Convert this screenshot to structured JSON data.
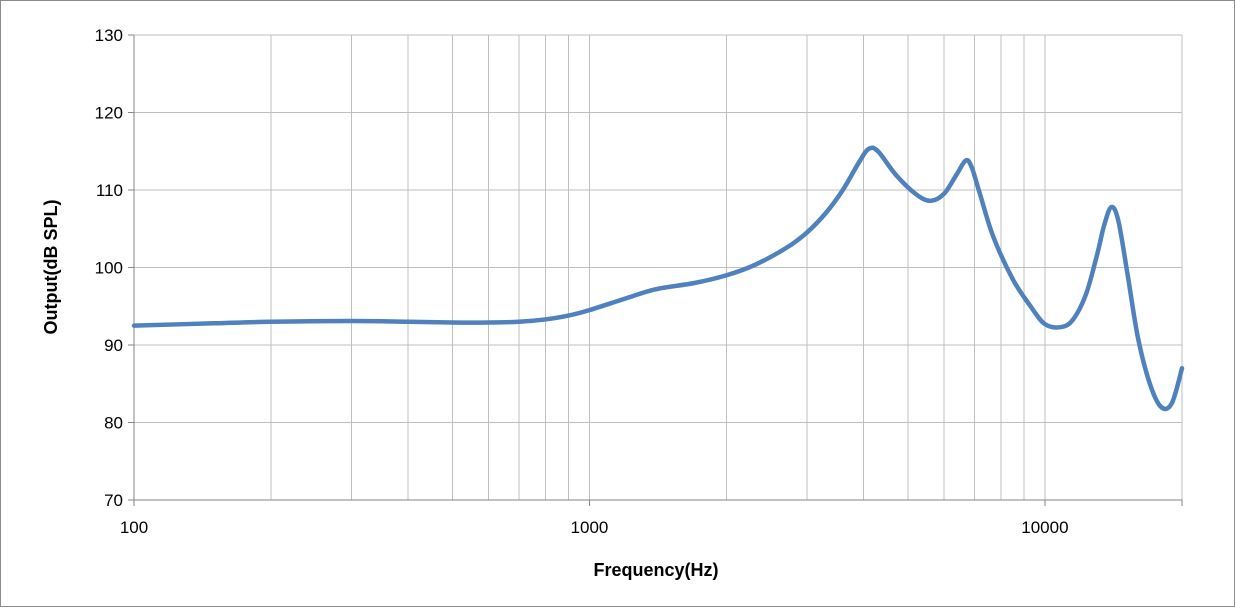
{
  "chart_data": {
    "type": "line",
    "title": "",
    "xlabel": "Frequency(Hz)",
    "ylabel": "Output(dB SPL)",
    "x_scale": "log",
    "xlim": [
      100,
      20000
    ],
    "ylim": [
      70,
      130
    ],
    "x_tick_labels": [
      "100",
      "1000",
      "10000"
    ],
    "y_ticks": [
      70,
      80,
      90,
      100,
      110,
      120,
      130
    ],
    "y_tick_labels": [
      "70",
      "80",
      "90",
      "100",
      "110",
      "120",
      "130"
    ],
    "grid": true,
    "legend": "none",
    "line_color": "#4f81bd",
    "series": [
      {
        "x": [
          100,
          150,
          200,
          300,
          400,
          500,
          600,
          700,
          800,
          900,
          1000,
          1200,
          1400,
          1700,
          2000,
          2300,
          2700,
          3000,
          3300,
          3600,
          3900,
          4100,
          4300,
          4700,
          5200,
          5600,
          6000,
          6400,
          6700,
          6900,
          7200,
          7700,
          8500,
          9300,
          10000,
          10800,
          11500,
          12300,
          13000,
          13500,
          14000,
          14500,
          15200,
          16000,
          17000,
          18000,
          19000,
          20000
        ],
        "y": [
          92.5,
          92.8,
          93.0,
          93.1,
          93.0,
          92.9,
          92.9,
          93.0,
          93.3,
          93.8,
          94.5,
          96.0,
          97.2,
          98.0,
          99.0,
          100.3,
          102.5,
          104.5,
          107.0,
          110.0,
          113.5,
          115.3,
          115.0,
          112.0,
          109.5,
          108.6,
          109.5,
          112.0,
          113.8,
          113.0,
          109.5,
          104.0,
          98.5,
          95.0,
          92.7,
          92.3,
          93.2,
          96.5,
          101.5,
          105.5,
          107.8,
          106.0,
          99.0,
          91.0,
          85.0,
          82.0,
          82.5,
          87.0
        ]
      }
    ]
  }
}
